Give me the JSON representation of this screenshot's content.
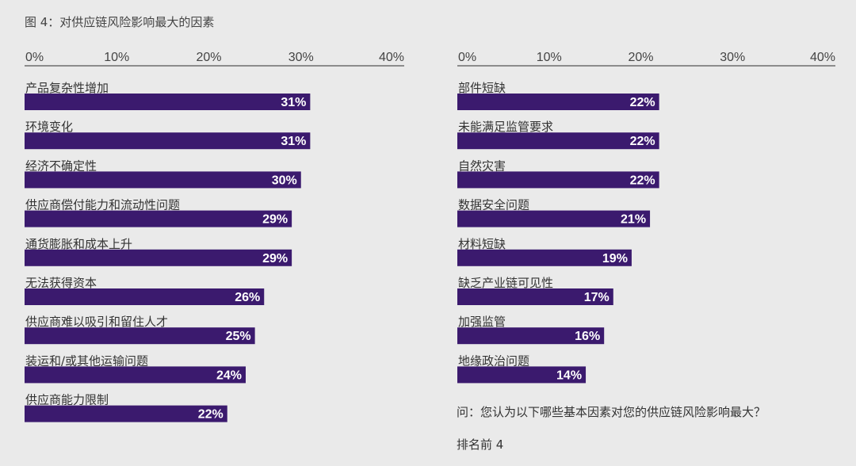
{
  "figure": {
    "title": "图 4：对供应链风险影响最大的因素",
    "question": "问：您认为以下哪些基本因素对您的供应链风险影响最大？",
    "ranking_note": "排名前 4",
    "bar_color": "#3b1a6e",
    "axis_color": "#555555"
  },
  "chart_data": [
    {
      "type": "bar",
      "orientation": "horizontal",
      "xlim": [
        0,
        40
      ],
      "ticks": [
        "0%",
        "10%",
        "20%",
        "30%",
        "40%"
      ],
      "categories": [
        "产品复杂性增加",
        "环境变化",
        "经济不确定性",
        "供应商偿付能力和流动性问题",
        "通货膨胀和成本上升",
        "无法获得资本",
        "供应商难以吸引和留住人才",
        "装运和/或其他运输问题",
        "供应商能力限制"
      ],
      "values": [
        31,
        31,
        30,
        29,
        29,
        26,
        25,
        24,
        22
      ],
      "labels": [
        "31%",
        "31%",
        "30%",
        "29%",
        "29%",
        "26%",
        "25%",
        "24%",
        "22%"
      ]
    },
    {
      "type": "bar",
      "orientation": "horizontal",
      "xlim": [
        0,
        40
      ],
      "ticks": [
        "0%",
        "10%",
        "20%",
        "30%",
        "40%"
      ],
      "categories": [
        "部件短缺",
        "未能满足监管要求",
        "自然灾害",
        "数据安全问题",
        "材料短缺",
        "缺乏产业链可见性",
        "加强监管",
        "地缘政治问题"
      ],
      "values": [
        22,
        22,
        22,
        21,
        19,
        17,
        16,
        14
      ],
      "labels": [
        "22%",
        "22%",
        "22%",
        "21%",
        "19%",
        "17%",
        "16%",
        "14%"
      ]
    }
  ]
}
